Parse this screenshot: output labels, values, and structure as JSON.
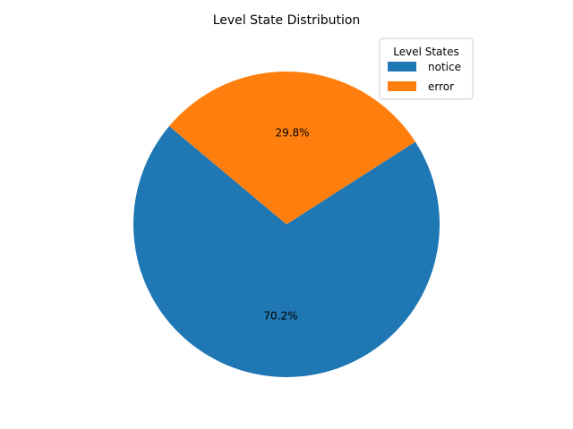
{
  "chart_data": {
    "type": "pie",
    "title": "Level State Distribution",
    "legend_title": "Level States",
    "legend_position": "top-right",
    "start_angle_deg": 140,
    "direction": "counterclockwise",
    "slices": [
      {
        "label": "notice",
        "value": 70.2,
        "pct_label": "70.2%",
        "color": "#1f77b4"
      },
      {
        "label": "error",
        "value": 29.8,
        "pct_label": "29.8%",
        "color": "#ff7f0e"
      }
    ]
  }
}
